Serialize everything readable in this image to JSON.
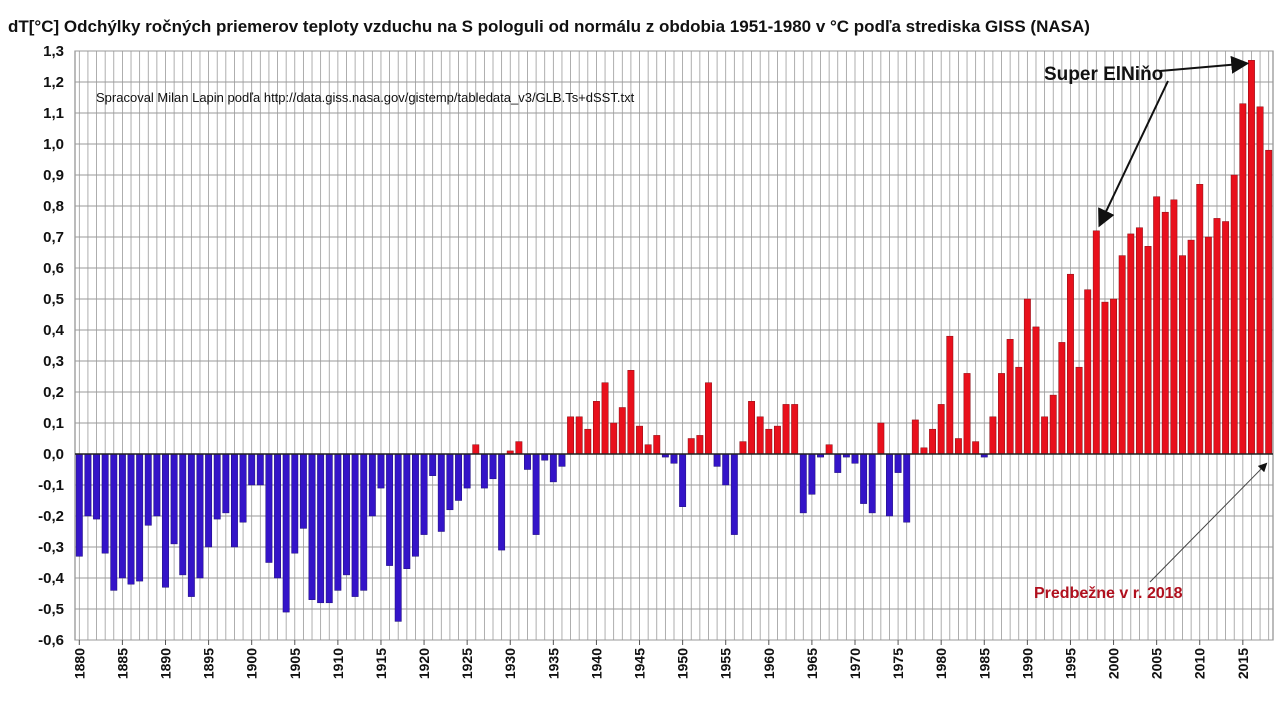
{
  "chart_data": {
    "type": "bar",
    "title": "dT[°C]  Odchýlky ročných priemerov teploty vzduchu na S pologuli od normálu z obdobia 1951-1980 v °C podľa strediska GISS (NASA)",
    "source_note": "Spracoval Milan Lapin podľa http://data.giss.nasa.gov/gistemp/tabledata_v3/GLB.Ts+dSST.txt",
    "xlabel": "",
    "ylabel": "",
    "ylim": [
      -0.6,
      1.3
    ],
    "y_ticks": [
      "1,3",
      "1,2",
      "1,1",
      "1,0",
      "0,9",
      "0,8",
      "0,7",
      "0,6",
      "0,5",
      "0,4",
      "0,3",
      "0,2",
      "0,1",
      "0,0",
      "-0,1",
      "-0,2",
      "-0,3",
      "-0,4",
      "-0,5",
      "-0,6"
    ],
    "y_tick_values": [
      1.3,
      1.2,
      1.1,
      1.0,
      0.9,
      0.8,
      0.7,
      0.6,
      0.5,
      0.4,
      0.3,
      0.2,
      0.1,
      0.0,
      -0.1,
      -0.2,
      -0.3,
      -0.4,
      -0.5,
      -0.6
    ],
    "x_ticks": [
      "1880",
      "1885",
      "1890",
      "1895",
      "1900",
      "1905",
      "1910",
      "1915",
      "1920",
      "1925",
      "1930",
      "1935",
      "1940",
      "1945",
      "1950",
      "1955",
      "1960",
      "1965",
      "1970",
      "1975",
      "1980",
      "1985",
      "1990",
      "1995",
      "2000",
      "2005",
      "2010",
      "2015"
    ],
    "grid": true,
    "year_start": 1880,
    "year_end": 2018,
    "colors": {
      "positive": "#e8101c",
      "negative": "#3414c8",
      "grid": "#9a9a9a"
    },
    "annotations": {
      "el_nino": "Super ElNiňo",
      "preliminary": "Predbežne v r. 2018"
    },
    "values": [
      -0.33,
      -0.2,
      -0.21,
      -0.32,
      -0.44,
      -0.4,
      -0.42,
      -0.41,
      -0.23,
      -0.2,
      -0.43,
      -0.29,
      -0.39,
      -0.46,
      -0.4,
      -0.3,
      -0.21,
      -0.19,
      -0.3,
      -0.22,
      -0.1,
      -0.1,
      -0.35,
      -0.4,
      -0.51,
      -0.32,
      -0.24,
      -0.47,
      -0.48,
      -0.48,
      -0.44,
      -0.39,
      -0.46,
      -0.44,
      -0.2,
      -0.11,
      -0.36,
      -0.54,
      -0.37,
      -0.33,
      -0.26,
      -0.07,
      -0.25,
      -0.18,
      -0.15,
      -0.11,
      0.03,
      -0.11,
      -0.08,
      -0.31,
      0.01,
      0.04,
      -0.05,
      -0.26,
      -0.02,
      -0.09,
      -0.04,
      0.12,
      0.12,
      0.08,
      0.17,
      0.23,
      0.1,
      0.15,
      0.27,
      0.09,
      0.03,
      0.06,
      -0.01,
      -0.03,
      -0.17,
      0.05,
      0.06,
      0.23,
      -0.04,
      -0.1,
      -0.26,
      0.04,
      0.17,
      0.12,
      0.08,
      0.09,
      0.16,
      0.16,
      -0.19,
      -0.13,
      -0.01,
      0.03,
      -0.06,
      -0.01,
      -0.03,
      -0.16,
      -0.19,
      0.1,
      -0.2,
      -0.06,
      -0.22,
      0.11,
      0.02,
      0.08,
      0.16,
      0.38,
      0.05,
      0.26,
      0.04,
      -0.01,
      0.12,
      0.26,
      0.37,
      0.28,
      0.5,
      0.41,
      0.12,
      0.19,
      0.36,
      0.58,
      0.28,
      0.53,
      0.72,
      0.49,
      0.5,
      0.64,
      0.71,
      0.73,
      0.67,
      0.83,
      0.78,
      0.82,
      0.64,
      0.69,
      0.87,
      0.7,
      0.76,
      0.75,
      0.9,
      1.13,
      1.27,
      1.12,
      0.98
    ]
  }
}
